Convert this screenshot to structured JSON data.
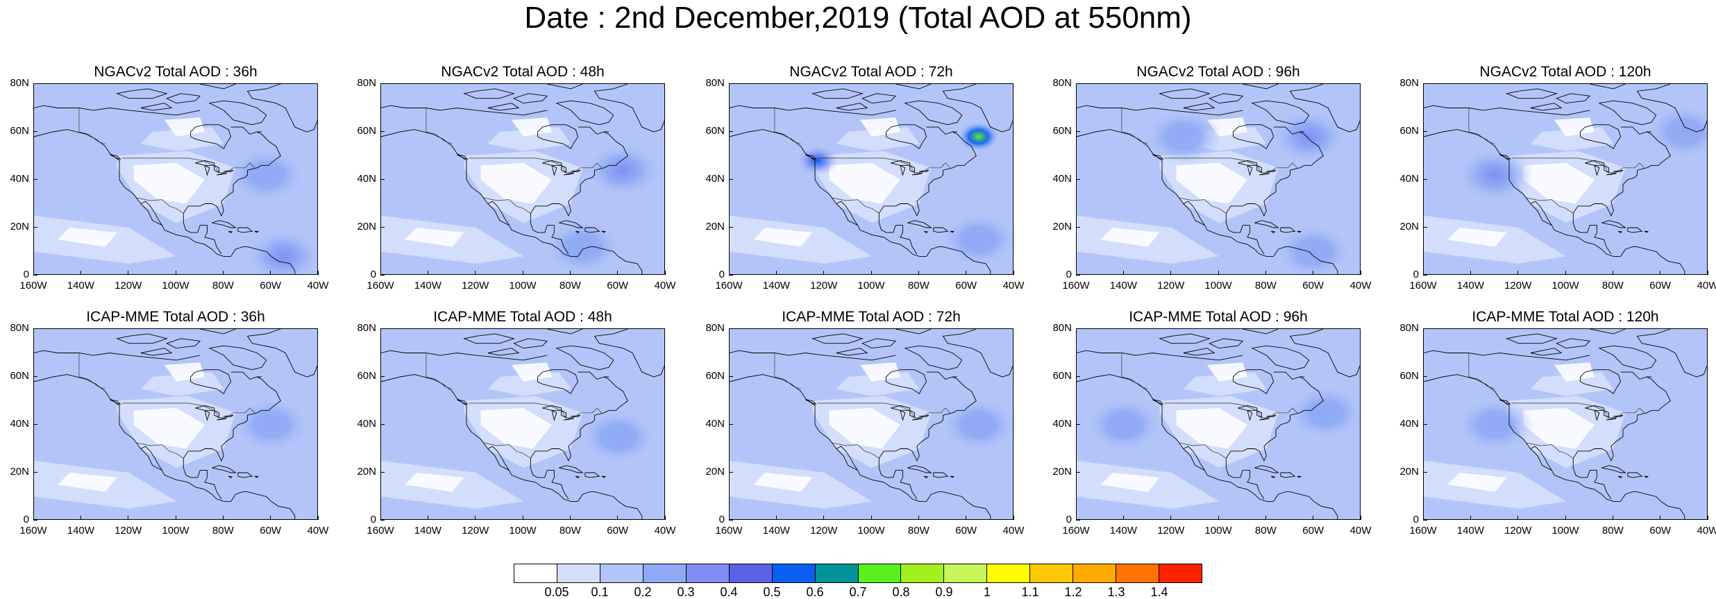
{
  "title": "Date : 2nd December,2019 (Total AOD at 550nm)",
  "panels": [
    {
      "title": "NGACv2 Total AOD : 36h",
      "row": 0,
      "col": 0,
      "hotspots": [
        {
          "lon": -55,
          "lat": 8,
          "level": 4
        },
        {
          "lon": -62,
          "lat": 42,
          "level": 3
        }
      ]
    },
    {
      "title": "NGACv2 Total AOD : 48h",
      "row": 0,
      "col": 1,
      "hotspots": [
        {
          "lon": -58,
          "lat": 44,
          "level": 4
        },
        {
          "lon": -75,
          "lat": 12,
          "level": 3
        }
      ]
    },
    {
      "title": "NGACv2 Total AOD : 72h",
      "row": 0,
      "col": 2,
      "hotspots": [
        {
          "lon": -55,
          "lat": 58,
          "level": 8
        },
        {
          "lon": -123,
          "lat": 48,
          "level": 6
        },
        {
          "lon": -55,
          "lat": 15,
          "level": 3
        }
      ]
    },
    {
      "title": "NGACv2 Total AOD : 96h",
      "row": 0,
      "col": 3,
      "hotspots": [
        {
          "lon": -62,
          "lat": 58,
          "level": 4
        },
        {
          "lon": -60,
          "lat": 10,
          "level": 3
        },
        {
          "lon": -115,
          "lat": 58,
          "level": 3
        }
      ]
    },
    {
      "title": "NGACv2 Total AOD : 120h",
      "row": 0,
      "col": 4,
      "hotspots": [
        {
          "lon": -130,
          "lat": 42,
          "level": 4
        },
        {
          "lon": -50,
          "lat": 60,
          "level": 3
        }
      ]
    },
    {
      "title": "ICAP-MME Total AOD : 36h",
      "row": 1,
      "col": 0,
      "hotspots": [
        {
          "lon": -60,
          "lat": 40,
          "level": 3
        }
      ]
    },
    {
      "title": "ICAP-MME Total AOD : 48h",
      "row": 1,
      "col": 1,
      "hotspots": [
        {
          "lon": -60,
          "lat": 35,
          "level": 3
        }
      ]
    },
    {
      "title": "ICAP-MME Total AOD : 72h",
      "row": 1,
      "col": 2,
      "hotspots": [
        {
          "lon": -55,
          "lat": 40,
          "level": 3
        }
      ]
    },
    {
      "title": "ICAP-MME Total AOD : 96h",
      "row": 1,
      "col": 3,
      "hotspots": [
        {
          "lon": -140,
          "lat": 40,
          "level": 3
        },
        {
          "lon": -55,
          "lat": 45,
          "level": 3
        }
      ]
    },
    {
      "title": "ICAP-MME Total AOD : 120h",
      "row": 1,
      "col": 4,
      "hotspots": [
        {
          "lon": -130,
          "lat": 40,
          "level": 3
        }
      ]
    }
  ],
  "lat_ticks": [
    "0",
    "20N",
    "40N",
    "60N",
    "80N"
  ],
  "lon_ticks": [
    "160W",
    "140W",
    "120W",
    "100W",
    "80W",
    "60W",
    "40W"
  ],
  "map_extent": {
    "lon": [
      -160,
      -40
    ],
    "lat": [
      0,
      80
    ]
  },
  "colorbar": {
    "labels": [
      "0.05",
      "0.1",
      "0.2",
      "0.3",
      "0.4",
      "0.5",
      "0.6",
      "0.7",
      "0.8",
      "0.9",
      "1",
      "1.1",
      "1.2",
      "1.3",
      "1.4"
    ],
    "colors": [
      "#ffffff",
      "#d5dffc",
      "#b3c5f8",
      "#8fa9f5",
      "#7e8ef2",
      "#5a62e6",
      "#0a5ef0",
      "#00939a",
      "#5af01e",
      "#a2f01e",
      "#c8f55a",
      "#ffff00",
      "#ffc800",
      "#ffaa00",
      "#ff7300",
      "#ff2200"
    ]
  }
}
